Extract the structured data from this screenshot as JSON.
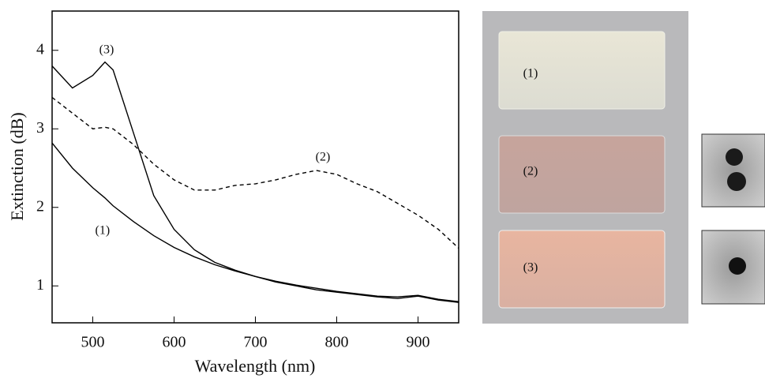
{
  "chart_data": {
    "type": "line",
    "x_label": "Wavelength (nm)",
    "y_label": "Extinction (dB)",
    "x": [
      450,
      475,
      500,
      515,
      525,
      550,
      575,
      600,
      625,
      650,
      675,
      700,
      725,
      750,
      775,
      800,
      825,
      850,
      875,
      900,
      925,
      950
    ],
    "series": [
      {
        "name": "(1)",
        "color": "#000000",
        "style": "solid",
        "values": [
          2.82,
          2.5,
          2.25,
          2.12,
          2.02,
          1.82,
          1.64,
          1.49,
          1.37,
          1.27,
          1.19,
          1.12,
          1.06,
          1.01,
          0.97,
          0.93,
          0.9,
          0.87,
          0.86,
          0.88,
          0.83,
          0.8
        ]
      },
      {
        "name": "(2)",
        "color": "#000000",
        "style": "dashed",
        "values": [
          3.4,
          3.2,
          3.0,
          3.02,
          3.0,
          2.8,
          2.55,
          2.35,
          2.22,
          2.22,
          2.28,
          2.3,
          2.35,
          2.42,
          2.47,
          2.42,
          2.3,
          2.2,
          2.05,
          1.9,
          1.72,
          1.48
        ]
      },
      {
        "name": "(3)",
        "color": "#000000",
        "style": "solid",
        "values": [
          3.8,
          3.52,
          3.68,
          3.85,
          3.75,
          2.95,
          2.15,
          1.72,
          1.46,
          1.3,
          1.2,
          1.12,
          1.05,
          1.0,
          0.95,
          0.92,
          0.89,
          0.86,
          0.84,
          0.87,
          0.82,
          0.79
        ]
      }
    ],
    "xlim": [
      450,
      950
    ],
    "ylim": [
      0.53,
      4.5
    ],
    "xticks": [
      500,
      600,
      700,
      800,
      900
    ],
    "yticks": [
      1,
      2,
      3,
      4
    ]
  },
  "photo_labels": [
    "(1)",
    "(2)",
    "(3)"
  ]
}
